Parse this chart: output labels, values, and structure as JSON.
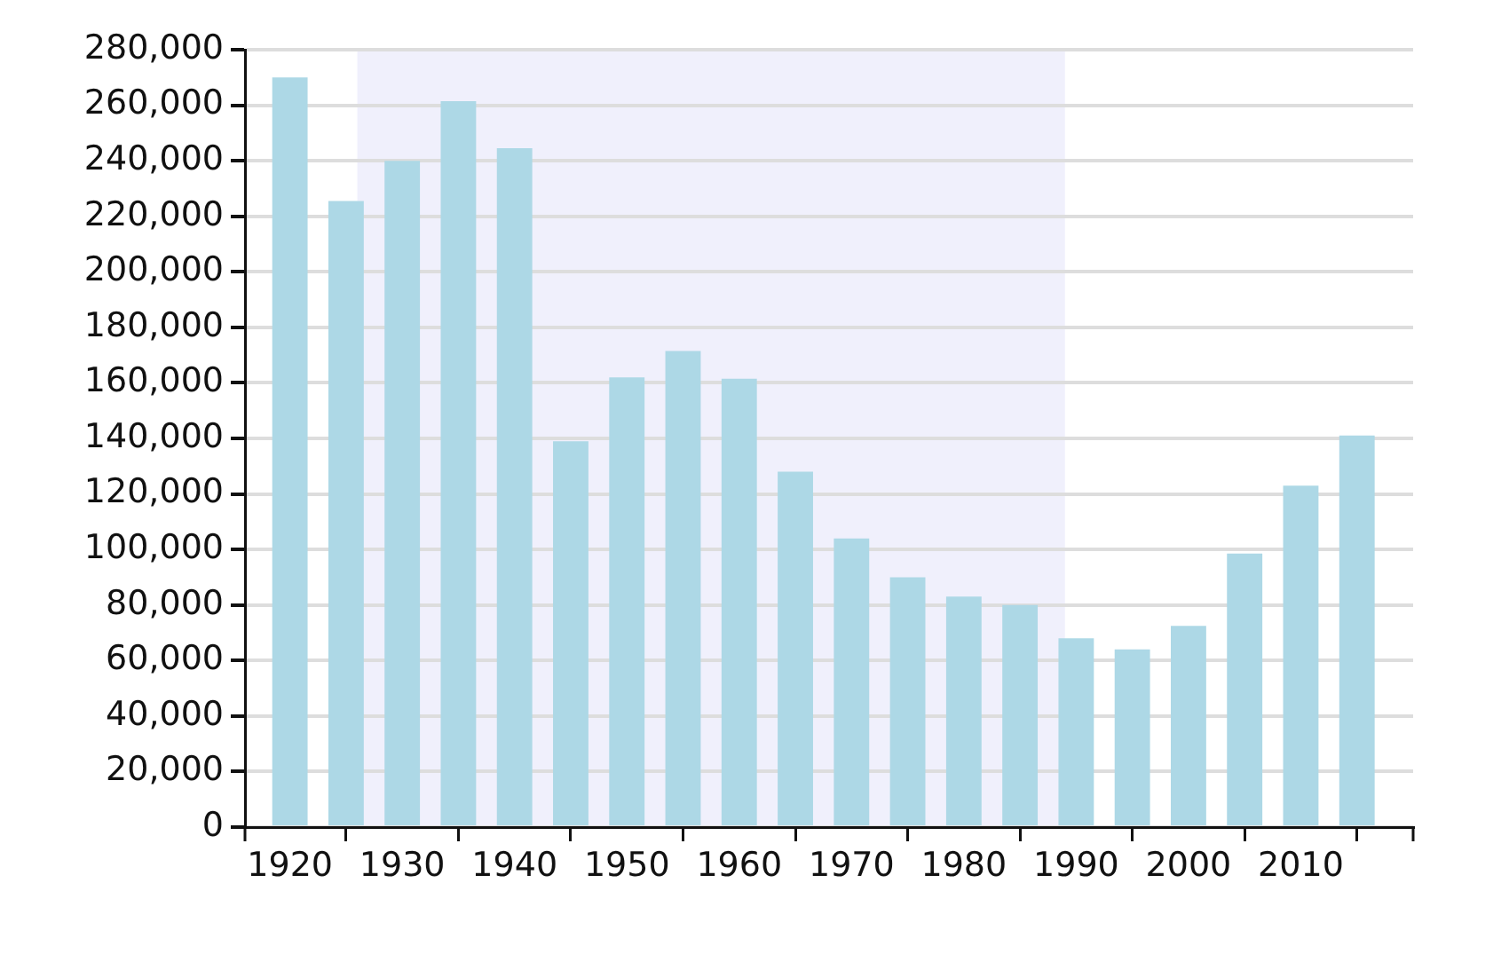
{
  "chart_data": {
    "type": "bar",
    "x": [
      1920,
      1925,
      1930,
      1935,
      1940,
      1945,
      1950,
      1955,
      1960,
      1965,
      1970,
      1975,
      1980,
      1985,
      1990,
      1995,
      2000,
      2005,
      2010,
      2015
    ],
    "values": [
      270000,
      225500,
      240000,
      261500,
      244500,
      139000,
      162000,
      171500,
      161500,
      128000,
      104000,
      90000,
      83000,
      80000,
      68000,
      64000,
      72500,
      98500,
      123000,
      141000
    ],
    "color": "#add8e6",
    "xlim": [
      1916,
      2020
    ],
    "xticks": [
      1920,
      1930,
      1940,
      1950,
      1960,
      1970,
      1980,
      1990,
      2000,
      2010
    ],
    "ylim": [
      0,
      280000
    ],
    "yticks": [
      {
        "value": 0,
        "label": "0"
      },
      {
        "value": 20000,
        "label": "20,000"
      },
      {
        "value": 40000,
        "label": "40,000"
      },
      {
        "value": 60000,
        "label": "60,000"
      },
      {
        "value": 80000,
        "label": "80,000"
      },
      {
        "value": 100000,
        "label": "100,000"
      },
      {
        "value": 120000,
        "label": "120,000"
      },
      {
        "value": 140000,
        "label": "140,000"
      },
      {
        "value": 160000,
        "label": "160,000"
      },
      {
        "value": 180000,
        "label": "180,000"
      },
      {
        "value": 200000,
        "label": "200,000"
      },
      {
        "value": 220000,
        "label": "220,000"
      },
      {
        "value": 240000,
        "label": "240,000"
      },
      {
        "value": 260000,
        "label": "260,000"
      },
      {
        "value": 280000,
        "label": "280,000"
      }
    ],
    "grid": "y",
    "bands": [
      {
        "axis": "x",
        "from": 1926,
        "to": 1989,
        "color": "#f0f0fc"
      }
    ]
  }
}
